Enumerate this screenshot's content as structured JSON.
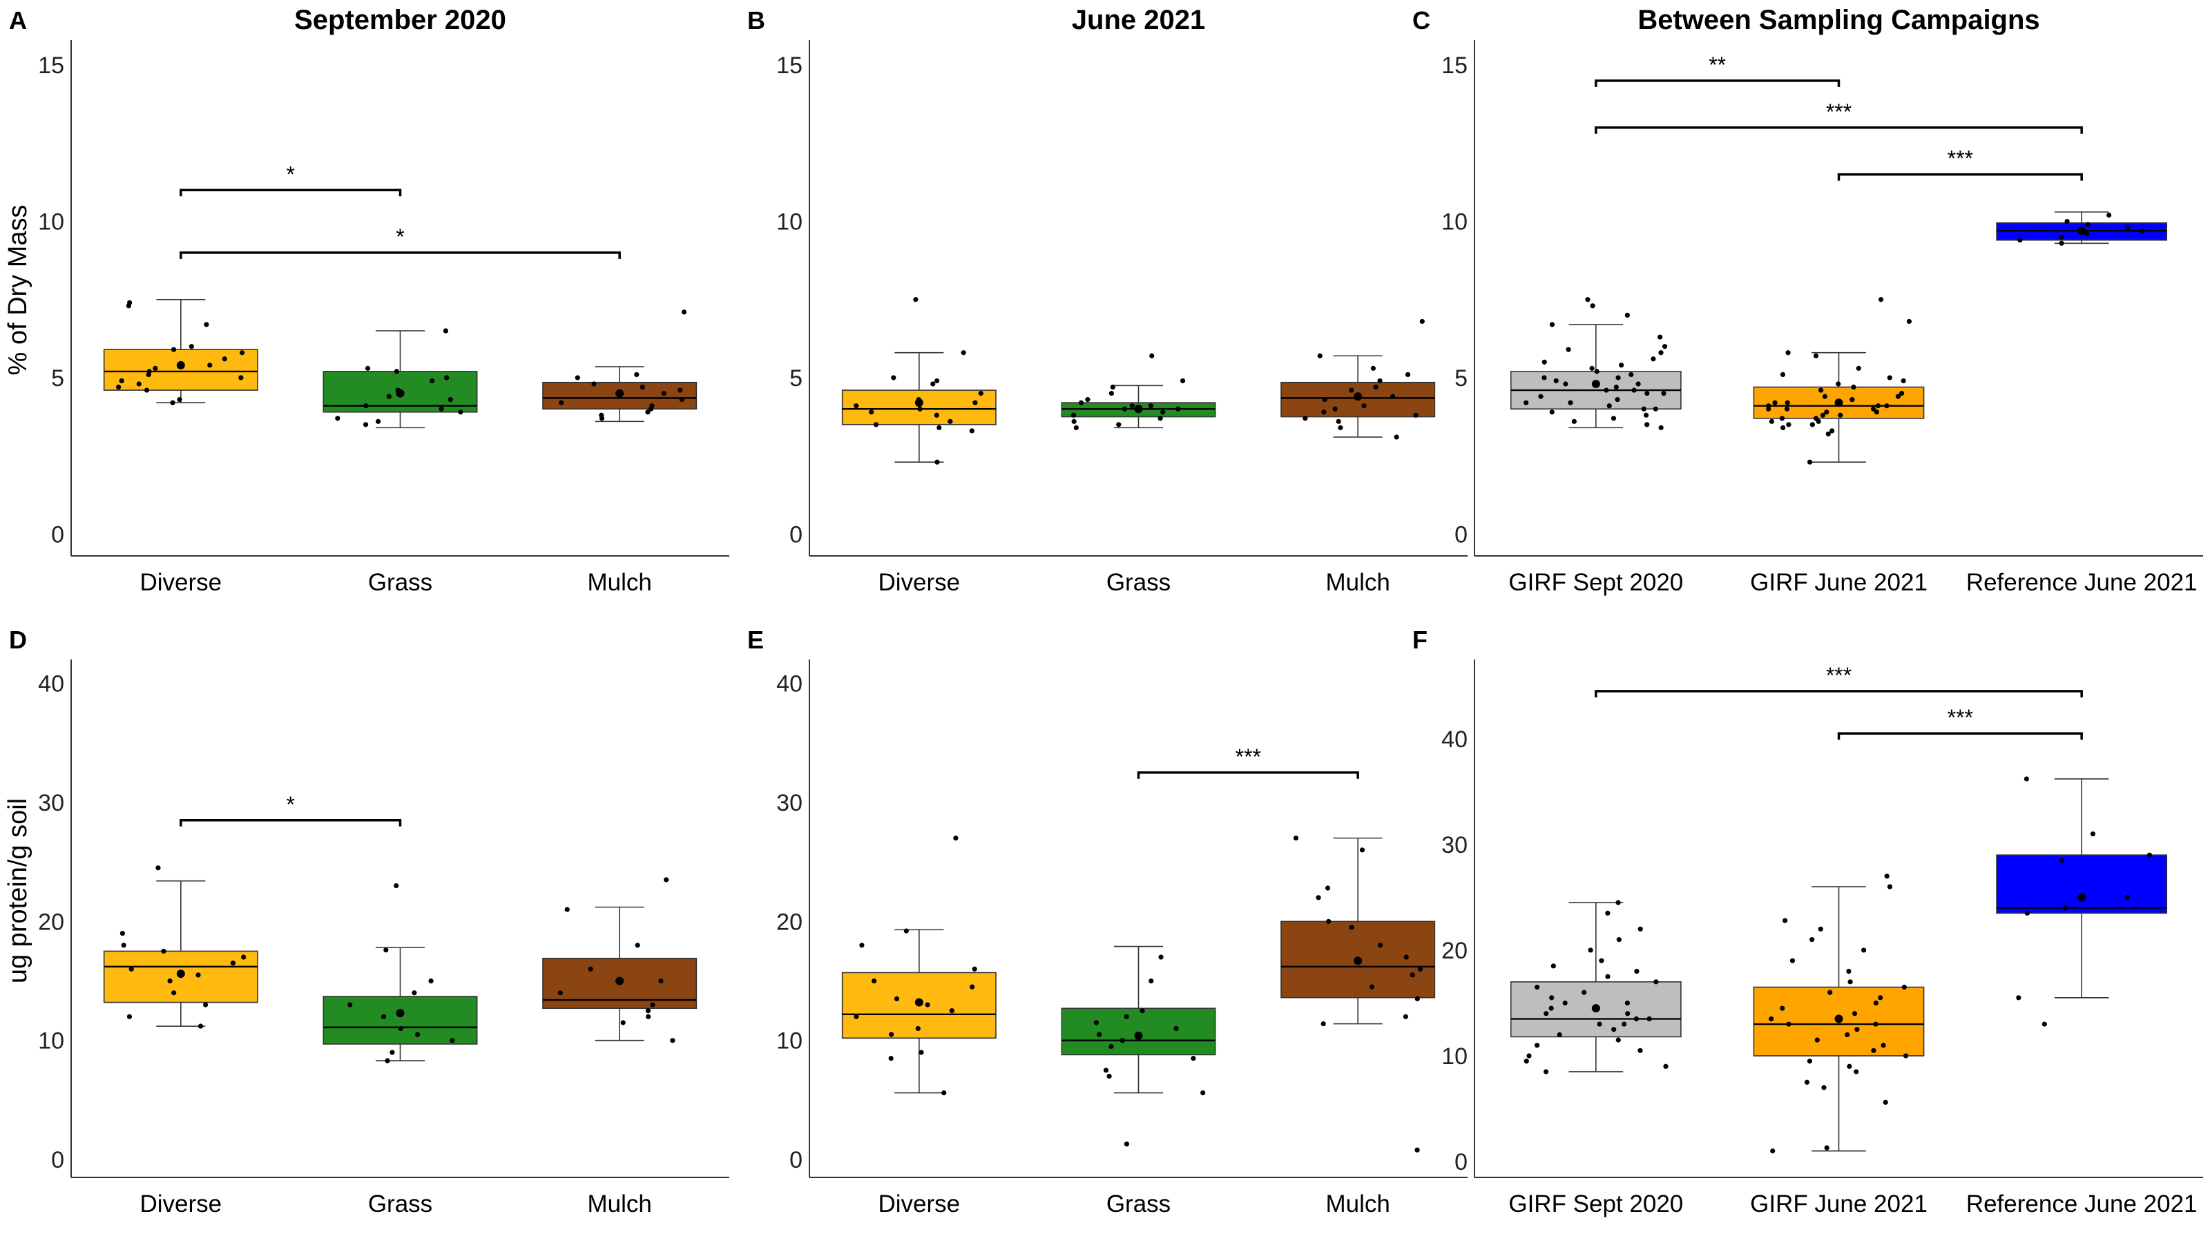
{
  "figure": {
    "row_y_titles": [
      "% of Dry Mass",
      "ug protein/g soil"
    ]
  },
  "chart_data": [
    {
      "panel": "A",
      "type": "box",
      "title": "September 2020",
      "ylabel": "% of Dry Mass",
      "ylim": [
        -0.7,
        15.8
      ],
      "yticks": [
        0,
        5,
        10,
        15
      ],
      "categories": [
        "Diverse",
        "Grass",
        "Mulch"
      ],
      "colors": [
        "#FFB90F",
        "#228B22",
        "#8B4513"
      ],
      "boxes": [
        {
          "min": 4.2,
          "q1": 4.6,
          "median": 5.2,
          "q3": 5.9,
          "max": 7.5,
          "mean": 5.4
        },
        {
          "min": 3.4,
          "q1": 3.9,
          "median": 4.1,
          "q3": 5.2,
          "max": 6.5,
          "mean": 4.5
        },
        {
          "min": 3.6,
          "q1": 4.0,
          "median": 4.35,
          "q3": 4.85,
          "max": 5.35,
          "mean": 4.5
        }
      ],
      "points": [
        [
          4.2,
          4.3,
          4.6,
          4.7,
          4.8,
          4.9,
          5.0,
          5.1,
          5.2,
          5.3,
          5.4,
          5.6,
          5.8,
          5.9,
          6.0,
          6.7,
          7.3,
          7.4
        ],
        [
          3.5,
          3.6,
          3.7,
          3.9,
          4.0,
          4.1,
          4.3,
          4.4,
          4.6,
          4.9,
          5.0,
          5.2,
          5.3,
          6.5
        ],
        [
          3.7,
          3.8,
          3.9,
          4.0,
          4.1,
          4.2,
          4.3,
          4.5,
          4.6,
          4.7,
          4.8,
          5.0,
          5.1,
          7.1
        ]
      ],
      "significance": [
        {
          "from": 0,
          "to": 1,
          "label": "*",
          "y": 11.0
        },
        {
          "from": 0,
          "to": 2,
          "label": "*",
          "y": 9.0
        }
      ]
    },
    {
      "panel": "B",
      "type": "box",
      "title": "June 2021",
      "ylabel": "",
      "ylim": [
        -0.7,
        15.8
      ],
      "yticks": [
        0,
        5,
        10,
        15
      ],
      "categories": [
        "Diverse",
        "Grass",
        "Mulch"
      ],
      "colors": [
        "#FFB90F",
        "#228B22",
        "#8B4513"
      ],
      "boxes": [
        {
          "min": 2.3,
          "q1": 3.5,
          "median": 4.0,
          "q3": 4.6,
          "max": 5.8,
          "mean": 4.2
        },
        {
          "min": 3.4,
          "q1": 3.75,
          "median": 4.0,
          "q3": 4.2,
          "max": 4.75,
          "mean": 4.0
        },
        {
          "min": 3.1,
          "q1": 3.75,
          "median": 4.35,
          "q3": 4.85,
          "max": 5.7,
          "mean": 4.4
        }
      ],
      "points": [
        [
          2.3,
          3.3,
          3.4,
          3.5,
          3.6,
          3.8,
          3.9,
          4.0,
          4.1,
          4.2,
          4.3,
          4.5,
          4.8,
          4.9,
          5.0,
          5.8,
          7.5
        ],
        [
          3.4,
          3.5,
          3.6,
          3.7,
          3.8,
          3.9,
          4.0,
          4.0,
          4.1,
          4.1,
          4.2,
          4.3,
          4.5,
          4.7,
          4.9,
          5.7
        ],
        [
          3.1,
          3.4,
          3.6,
          3.7,
          3.8,
          3.9,
          4.0,
          4.1,
          4.3,
          4.4,
          4.6,
          4.7,
          4.9,
          5.1,
          5.3,
          5.7,
          6.8
        ]
      ],
      "significance": []
    },
    {
      "panel": "C",
      "type": "box",
      "title": "Between Sampling Campaigns",
      "ylabel": "",
      "ylim": [
        -0.7,
        15.8
      ],
      "yticks": [
        0,
        5,
        10,
        15
      ],
      "categories": [
        "GIRF Sept 2020",
        "GIRF June 2021",
        "Reference June 2021"
      ],
      "colors": [
        "#BEBEBE",
        "#FFA500",
        "#0000FF"
      ],
      "boxes": [
        {
          "min": 3.4,
          "q1": 4.0,
          "median": 4.6,
          "q3": 5.2,
          "max": 6.7,
          "mean": 4.8
        },
        {
          "min": 2.3,
          "q1": 3.7,
          "median": 4.1,
          "q3": 4.7,
          "max": 5.8,
          "mean": 4.2
        },
        {
          "min": 9.3,
          "q1": 9.4,
          "median": 9.7,
          "q3": 9.95,
          "max": 10.3,
          "mean": 9.7
        }
      ],
      "points": [
        [
          3.4,
          3.5,
          3.6,
          3.7,
          3.8,
          3.9,
          4.0,
          4.0,
          4.1,
          4.2,
          4.2,
          4.3,
          4.4,
          4.5,
          4.5,
          4.6,
          4.6,
          4.7,
          4.8,
          4.8,
          4.9,
          5.0,
          5.0,
          5.1,
          5.2,
          5.3,
          5.4,
          5.5,
          5.6,
          5.8,
          5.9,
          6.0,
          6.3,
          6.7,
          7.0,
          7.3,
          7.5
        ],
        [
          2.3,
          3.2,
          3.3,
          3.4,
          3.5,
          3.5,
          3.6,
          3.6,
          3.7,
          3.7,
          3.8,
          3.8,
          3.9,
          3.9,
          4.0,
          4.0,
          4.0,
          4.1,
          4.1,
          4.1,
          4.2,
          4.2,
          4.3,
          4.3,
          4.4,
          4.4,
          4.5,
          4.6,
          4.7,
          4.8,
          4.9,
          5.0,
          5.1,
          5.3,
          5.7,
          5.8,
          6.8,
          7.5
        ],
        [
          9.3,
          9.4,
          9.5,
          9.6,
          9.7,
          9.8,
          9.9,
          10.0,
          10.2
        ]
      ],
      "significance": [
        {
          "from": 0,
          "to": 1,
          "label": "**",
          "y": 14.5
        },
        {
          "from": 0,
          "to": 2,
          "label": "***",
          "y": 13.0
        },
        {
          "from": 1,
          "to": 2,
          "label": "***",
          "y": 11.5
        }
      ]
    },
    {
      "panel": "D",
      "type": "box",
      "title": "",
      "ylabel": "ug protein/g soil",
      "ylim": [
        -1.5,
        42
      ],
      "yticks": [
        0,
        10,
        20,
        30,
        40
      ],
      "categories": [
        "Diverse",
        "Grass",
        "Mulch"
      ],
      "colors": [
        "#FFB90F",
        "#228B22",
        "#8B4513"
      ],
      "boxes": [
        {
          "min": 11.2,
          "q1": 13.2,
          "median": 16.2,
          "q3": 17.5,
          "max": 23.4,
          "mean": 15.6
        },
        {
          "min": 8.3,
          "q1": 9.7,
          "median": 11.1,
          "q3": 13.7,
          "max": 17.8,
          "mean": 12.3
        },
        {
          "min": 10.0,
          "q1": 12.7,
          "median": 13.4,
          "q3": 16.9,
          "max": 21.2,
          "mean": 15.0
        }
      ],
      "points": [
        [
          11.2,
          12.0,
          13.0,
          14.0,
          15.0,
          15.5,
          16.0,
          16.5,
          17.0,
          17.5,
          18.0,
          19.0,
          24.5
        ],
        [
          8.3,
          9.0,
          10.0,
          10.5,
          11.0,
          12.0,
          13.0,
          14.0,
          15.0,
          17.6,
          23.0
        ],
        [
          10.0,
          11.5,
          12.0,
          12.5,
          13.0,
          14.0,
          15.0,
          16.0,
          18.0,
          21.0,
          23.5
        ]
      ],
      "significance": [
        {
          "from": 0,
          "to": 1,
          "label": "*",
          "y": 28.5
        }
      ]
    },
    {
      "panel": "E",
      "type": "box",
      "title": "",
      "ylabel": "",
      "ylim": [
        -1.5,
        42
      ],
      "yticks": [
        0,
        10,
        20,
        30,
        40
      ],
      "categories": [
        "Diverse",
        "Grass",
        "Mulch"
      ],
      "colors": [
        "#FFB90F",
        "#228B22",
        "#8B4513"
      ],
      "boxes": [
        {
          "min": 5.6,
          "q1": 10.2,
          "median": 12.2,
          "q3": 15.7,
          "max": 19.3,
          "mean": 13.2
        },
        {
          "min": 5.6,
          "q1": 8.8,
          "median": 10.0,
          "q3": 12.7,
          "max": 17.9,
          "mean": 10.4
        },
        {
          "min": 11.4,
          "q1": 13.6,
          "median": 16.2,
          "q3": 20.0,
          "max": 27.0,
          "mean": 16.7
        }
      ],
      "points": [
        [
          5.6,
          8.5,
          9.0,
          10.5,
          11.0,
          12.0,
          12.5,
          13.0,
          13.5,
          14.5,
          15.0,
          16.0,
          18.0,
          19.2,
          27.0
        ],
        [
          1.3,
          5.6,
          7.0,
          7.5,
          8.5,
          9.5,
          10.0,
          10.5,
          11.0,
          11.5,
          12.0,
          12.5,
          15.0,
          17.0
        ],
        [
          0.8,
          11.4,
          12.0,
          13.5,
          14.5,
          15.5,
          16.0,
          17.0,
          18.0,
          19.5,
          20.0,
          22.0,
          22.8,
          26.0,
          27.0
        ]
      ],
      "significance": [
        {
          "from": 1,
          "to": 2,
          "label": "***",
          "y": 32.5
        }
      ]
    },
    {
      "panel": "F",
      "type": "box",
      "title": "",
      "ylabel": "",
      "ylim": [
        -1.5,
        47.5
      ],
      "yticks": [
        0,
        10,
        20,
        30,
        40
      ],
      "categories": [
        "GIRF Sept 2020",
        "GIRF June 2021",
        "Reference June 2021"
      ],
      "colors": [
        "#BEBEBE",
        "#FFA500",
        "#0000FF"
      ],
      "boxes": [
        {
          "min": 8.5,
          "q1": 11.8,
          "median": 13.5,
          "q3": 17.0,
          "max": 24.5,
          "mean": 14.5
        },
        {
          "min": 1.0,
          "q1": 10.0,
          "median": 13.0,
          "q3": 16.5,
          "max": 26.0,
          "mean": 13.5
        },
        {
          "min": 15.5,
          "q1": 23.5,
          "median": 24.0,
          "q3": 29.0,
          "max": 36.2,
          "mean": 25.0
        }
      ],
      "points": [
        [
          8.5,
          9.0,
          9.5,
          10.0,
          10.5,
          11.0,
          11.5,
          12.0,
          12.5,
          13.0,
          13.0,
          13.5,
          13.5,
          14.0,
          14.0,
          14.5,
          15.0,
          15.0,
          15.5,
          16.0,
          16.5,
          17.0,
          17.5,
          18.0,
          18.5,
          19.0,
          20.0,
          21.0,
          22.0,
          23.5,
          24.5
        ],
        [
          1.0,
          1.3,
          5.6,
          7.0,
          7.5,
          8.5,
          9.0,
          9.5,
          10.0,
          10.5,
          11.0,
          11.5,
          12.0,
          12.5,
          13.0,
          13.0,
          13.5,
          14.0,
          14.5,
          15.0,
          15.5,
          16.0,
          16.5,
          17.0,
          18.0,
          19.0,
          20.0,
          21.0,
          22.0,
          22.8,
          26.0,
          27.0
        ],
        [
          13.0,
          15.5,
          23.5,
          24.0,
          25.0,
          28.5,
          29.0,
          31.0,
          36.2
        ]
      ],
      "significance": [
        {
          "from": 0,
          "to": 2,
          "label": "***",
          "y": 44.5
        },
        {
          "from": 1,
          "to": 2,
          "label": "***",
          "y": 40.5
        }
      ]
    }
  ]
}
